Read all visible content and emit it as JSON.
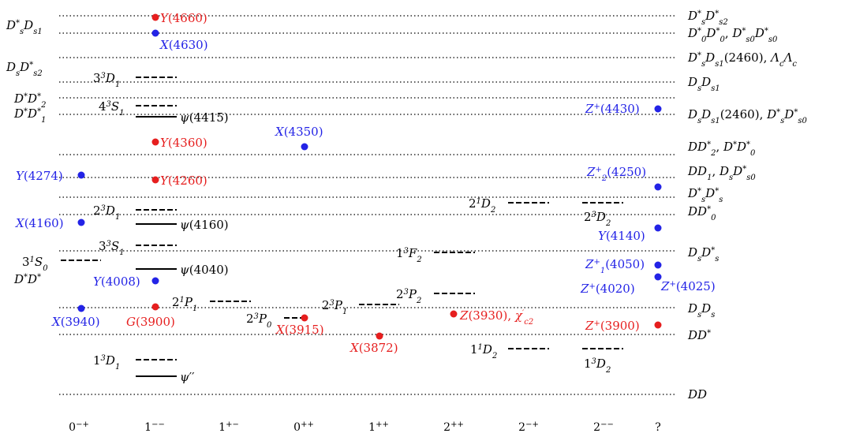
{
  "colors": {
    "blue": "#2323e6",
    "red": "#e61e1e",
    "black": "#000000"
  },
  "columns": [
    "0⁻⁺",
    "1⁻⁻",
    "1⁺⁻",
    "0⁺⁺",
    "1⁺⁺",
    "2⁺⁺",
    "2⁻⁺",
    "2⁻⁻",
    "?"
  ],
  "thresholds_right": [
    "D*sD*s2",
    "D*0D*0, D*s0D*s0",
    "D*sDs1(2460), ΛcΛc",
    "DsDs1",
    "DsDs1(2460), D*sD*s0",
    "DD*2, D*D*0",
    "DD1, DsD*s0",
    "D*sD*s",
    "DD*0",
    "DsD*s",
    "DsDs",
    "DD*",
    "DD"
  ],
  "thresholds_left": [
    "D*sDs1",
    "DsD*s2",
    "D*D*2",
    "D*D*1",
    "D*D*"
  ],
  "predicted_states": [
    "3³D₁",
    "4³S₁",
    "2³D₁",
    "3³S₁",
    "3¹S₀",
    "2¹P₁",
    "2³P₀",
    "2³P₁",
    "2³P₂",
    "1³F₂",
    "2¹D₂",
    "1¹D₂",
    "2³D₂",
    "1³D₂",
    "1³D₁"
  ],
  "observed_charmonium": [
    "ψ(4415)",
    "ψ(4160)",
    "ψ(4040)",
    "ψ′′"
  ],
  "exotic_states": [
    {
      "label": "Y(4660)",
      "color": "red"
    },
    {
      "label": "X(4630)",
      "color": "blue"
    },
    {
      "label": "Y(4360)",
      "color": "red"
    },
    {
      "label": "X(4350)",
      "color": "blue"
    },
    {
      "label": "Y(4274)",
      "color": "blue"
    },
    {
      "label": "Y(4260)",
      "color": "red"
    },
    {
      "label": "X(4160)",
      "color": "blue"
    },
    {
      "label": "Y(4008)",
      "color": "blue"
    },
    {
      "label": "X(3940)",
      "color": "blue"
    },
    {
      "label": "G(3900)",
      "color": "red"
    },
    {
      "label": "X(3915)",
      "color": "red"
    },
    {
      "label": "X(3872)",
      "color": "red"
    },
    {
      "label": "Z(3930), χ′c2",
      "color": "red"
    },
    {
      "label": "Z+(4430)",
      "color": "blue"
    },
    {
      "label": "Z+2(4250)",
      "color": "blue"
    },
    {
      "label": "Y(4140)",
      "color": "blue"
    },
    {
      "label": "Z+1(4050)",
      "color": "blue"
    },
    {
      "label": "Z+(4020)",
      "color": "blue"
    },
    {
      "label": "Z+(4025)",
      "color": "blue"
    },
    {
      "label": "Z+(3900)",
      "color": "red"
    }
  ]
}
